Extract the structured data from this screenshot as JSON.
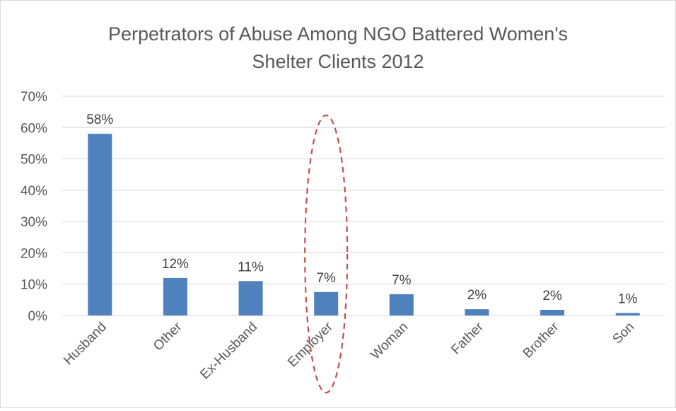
{
  "chart_data": {
    "type": "bar",
    "title": "Perpetrators of Abuse Among NGO Battered Women's Shelter Clients 2012",
    "title_lines": [
      "Perpetrators of Abuse Among NGO Battered Women's",
      "Shelter Clients 2012"
    ],
    "xlabel": "",
    "ylabel": "",
    "categories": [
      "Husband",
      "Other",
      "Ex-Husband",
      "Employer",
      "Woman",
      "Father",
      "Brother",
      "Son"
    ],
    "values": [
      0.58,
      0.12,
      0.11,
      0.075,
      0.068,
      0.02,
      0.018,
      0.008
    ],
    "data_labels": [
      "58%",
      "12%",
      "11%",
      "7%",
      "7%",
      "2%",
      "2%",
      "1%"
    ],
    "ylim": [
      0,
      0.7
    ],
    "yticks": [
      0,
      0.1,
      0.2,
      0.3,
      0.4,
      0.5,
      0.6,
      0.7
    ],
    "ytick_labels": [
      "0%",
      "10%",
      "20%",
      "30%",
      "40%",
      "50%",
      "60%",
      "70%"
    ],
    "grid": true,
    "legend": "none",
    "bar_color": "#4f81bd",
    "annotation": {
      "shape": "dashed-ellipse",
      "target_category": "Employer",
      "color": "#c0504d"
    }
  }
}
